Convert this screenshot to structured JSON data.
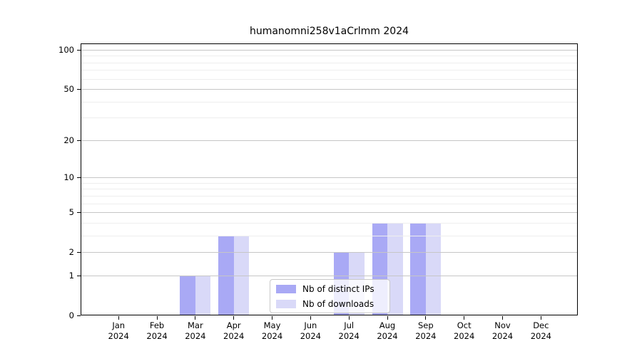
{
  "chart_data": {
    "type": "bar",
    "title": "humanomni258v1aCrlmm 2024",
    "categories": [
      "Jan",
      "Feb",
      "Mar",
      "Apr",
      "May",
      "Jun",
      "Jul",
      "Aug",
      "Sep",
      "Oct",
      "Nov",
      "Dec"
    ],
    "year": "2024",
    "series": [
      {
        "name": "Nb of distinct IPs",
        "color": "#a9a9f5",
        "values": [
          0,
          0,
          1,
          3,
          0,
          0,
          2,
          4,
          4,
          0,
          0,
          0
        ]
      },
      {
        "name": "Nb of downloads",
        "color": "#d9d9f8",
        "values": [
          0,
          0,
          1,
          3,
          0,
          0,
          2,
          4,
          4,
          0,
          0,
          0
        ]
      }
    ],
    "y_axis": {
      "scale": "log1p",
      "major_ticks": [
        0,
        1,
        2,
        5,
        10,
        20,
        50,
        100
      ],
      "minor_ticks": [
        3,
        4,
        6,
        7,
        8,
        9,
        30,
        40,
        60,
        70,
        80,
        90
      ],
      "max": 100
    },
    "legend": {
      "position": "lower-center"
    },
    "grid": "on",
    "colors": {
      "major_grid": "#c6c6c6",
      "minor_grid": "#eeeeee",
      "axis": "#000000"
    }
  }
}
